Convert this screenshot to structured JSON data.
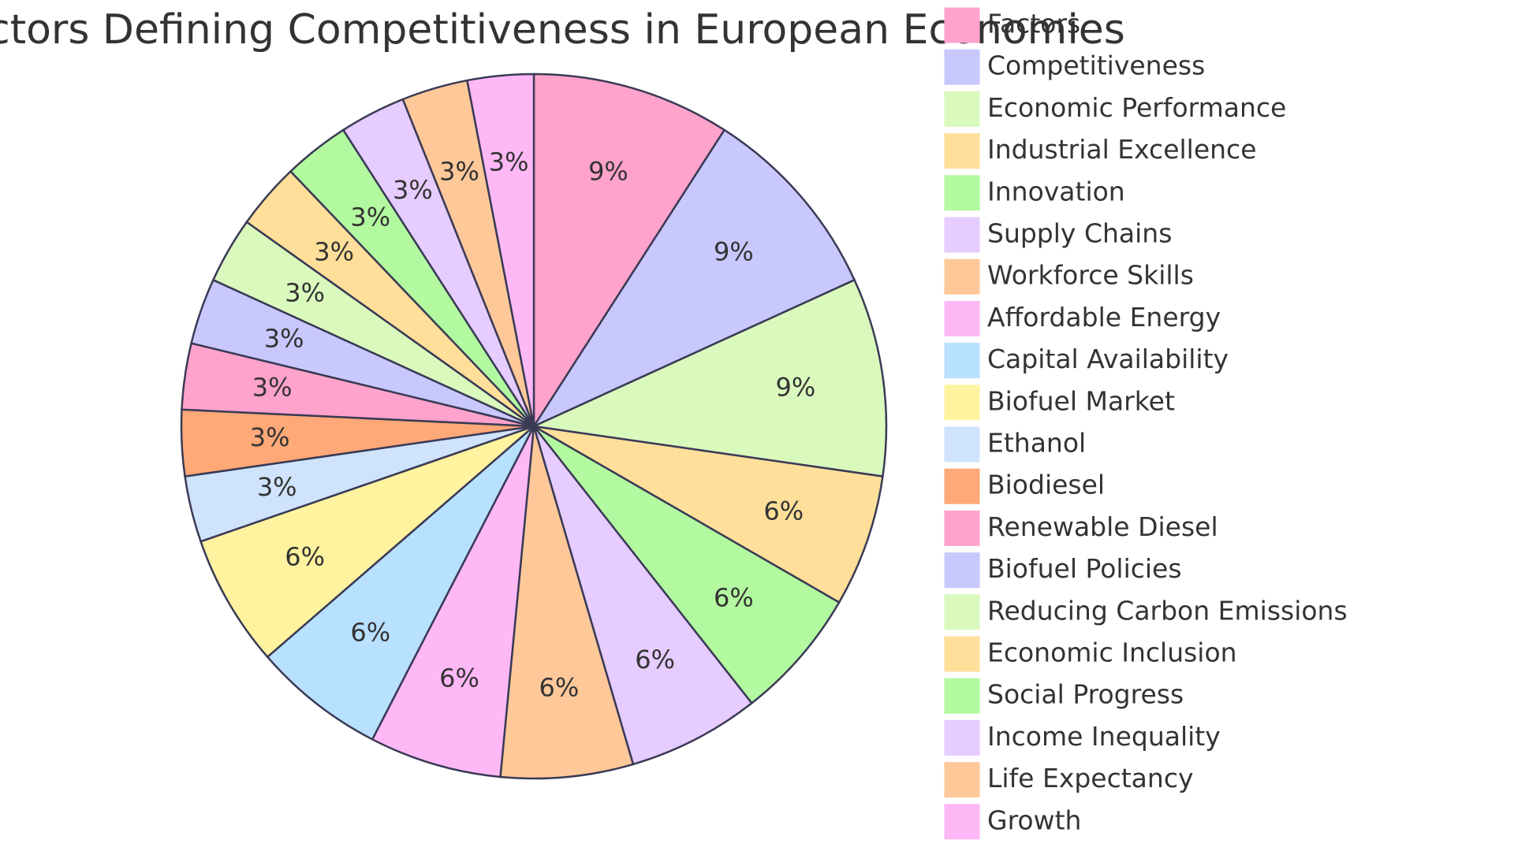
{
  "chart_data": {
    "type": "pie",
    "title": "Factors Defining Competitiveness in European Economies",
    "categories": [
      "Factors",
      "Competitiveness",
      "Economic Performance",
      "Industrial Excellence",
      "Innovation",
      "Supply Chains",
      "Workforce Skills",
      "Affordable Energy",
      "Capital Availability",
      "Biofuel Market",
      "Ethanol",
      "Biodiesel",
      "Renewable Diesel",
      "Biofuel Policies",
      "Reducing Carbon Emissions",
      "Economic Inclusion",
      "Social Progress",
      "Income Inequality",
      "Life Expectancy",
      "Growth"
    ],
    "values": [
      9,
      9,
      9,
      6,
      6,
      6,
      6,
      6,
      6,
      6,
      3,
      3,
      3,
      3,
      3,
      3,
      3,
      3,
      3,
      3
    ],
    "value_labels": [
      "9%",
      "9%",
      "9%",
      "6%",
      "6%",
      "6%",
      "6%",
      "6%",
      "6%",
      "6%",
      "3%",
      "3%",
      "3%",
      "3%",
      "3%",
      "3%",
      "3%",
      "3%",
      "3%",
      "3%"
    ],
    "colors": [
      "#ffa3cc",
      "#c8c8ff",
      "#daf9bd",
      "#ffdf99",
      "#b3f9a0",
      "#e6ccff",
      "#ffc899",
      "#ffb8f6",
      "#b8e0ff",
      "#fff3a0",
      "#cfe3fc",
      "#ffa878",
      "#ffa3cc",
      "#c8c8ff",
      "#daf9bd",
      "#ffdf99",
      "#b3f9a0",
      "#e6ccff",
      "#ffc899",
      "#ffb8f6"
    ]
  }
}
